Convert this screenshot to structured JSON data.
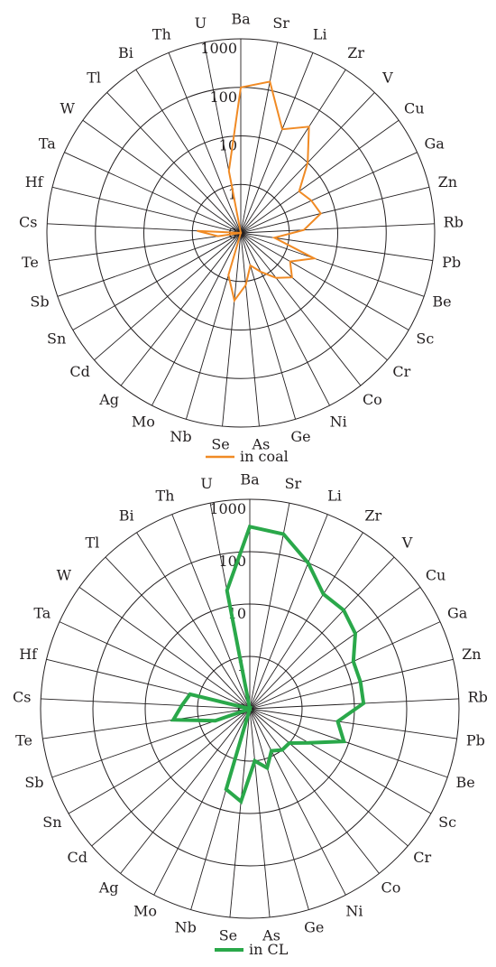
{
  "chart_data": [
    {
      "type": "radar",
      "scale": "log",
      "rlim": [
        0.1,
        1000
      ],
      "axis_tick_labels": [
        "0",
        "1",
        "10",
        "100",
        "1000"
      ],
      "categories": [
        "Ba",
        "Sr",
        "Li",
        "Zr",
        "V",
        "Cu",
        "Ga",
        "Zn",
        "Rb",
        "Pb",
        "Be",
        "Sc",
        "Cr",
        "Co",
        "Ni",
        "Ge",
        "As",
        "Se",
        "Nb",
        "Mo",
        "Ag",
        "Cd",
        "Sn",
        "Sb",
        "Te",
        "Cs",
        "Hf",
        "Ta",
        "W",
        "Tl",
        "Bi",
        "Th",
        "U"
      ],
      "series": [
        {
          "name": "in coal",
          "color": "#f08a24",
          "values": [
            100,
            150,
            20,
            40,
            10,
            3,
            4,
            5,
            2,
            0.5,
            4,
            1.5,
            2.5,
            1.5,
            0.8,
            0.5,
            1.2,
            2.5,
            0.8,
            0.1,
            0.1,
            0.1,
            0.1,
            0.1,
            0.3,
            0.8,
            0.1,
            0.1,
            0.1,
            0.1,
            0.1,
            0.1,
            2
          ]
        }
      ],
      "grid": true,
      "legend": "bottom"
    },
    {
      "type": "radar",
      "scale": "log",
      "rlim": [
        0.1,
        1000
      ],
      "axis_tick_labels": [
        "0",
        "1",
        "10",
        "100",
        "1000"
      ],
      "categories": [
        "Ba",
        "Sr",
        "Li",
        "Zr",
        "V",
        "Cu",
        "Ga",
        "Zn",
        "Rb",
        "Pb",
        "Be",
        "Sc",
        "Cr",
        "Co",
        "Ni",
        "Ge",
        "As",
        "Se",
        "Nb",
        "Mo",
        "Ag",
        "Cd",
        "Sn",
        "Sb",
        "Te",
        "Cs",
        "Hf",
        "Ta",
        "W",
        "Tl",
        "Bi",
        "Th",
        "U"
      ],
      "series": [
        {
          "name": "in CL",
          "color": "#2aa84a",
          "values": [
            300,
            250,
            100,
            40,
            40,
            30,
            15,
            15,
            15,
            5,
            8,
            2,
            1,
            1,
            0.8,
            1.5,
            1,
            6,
            4,
            0.1,
            0.1,
            0.1,
            0.1,
            0.5,
            3,
            2,
            1.5,
            0.1,
            0.1,
            0.1,
            0.1,
            0.1,
            20
          ]
        }
      ],
      "grid": true,
      "legend": "bottom"
    }
  ]
}
